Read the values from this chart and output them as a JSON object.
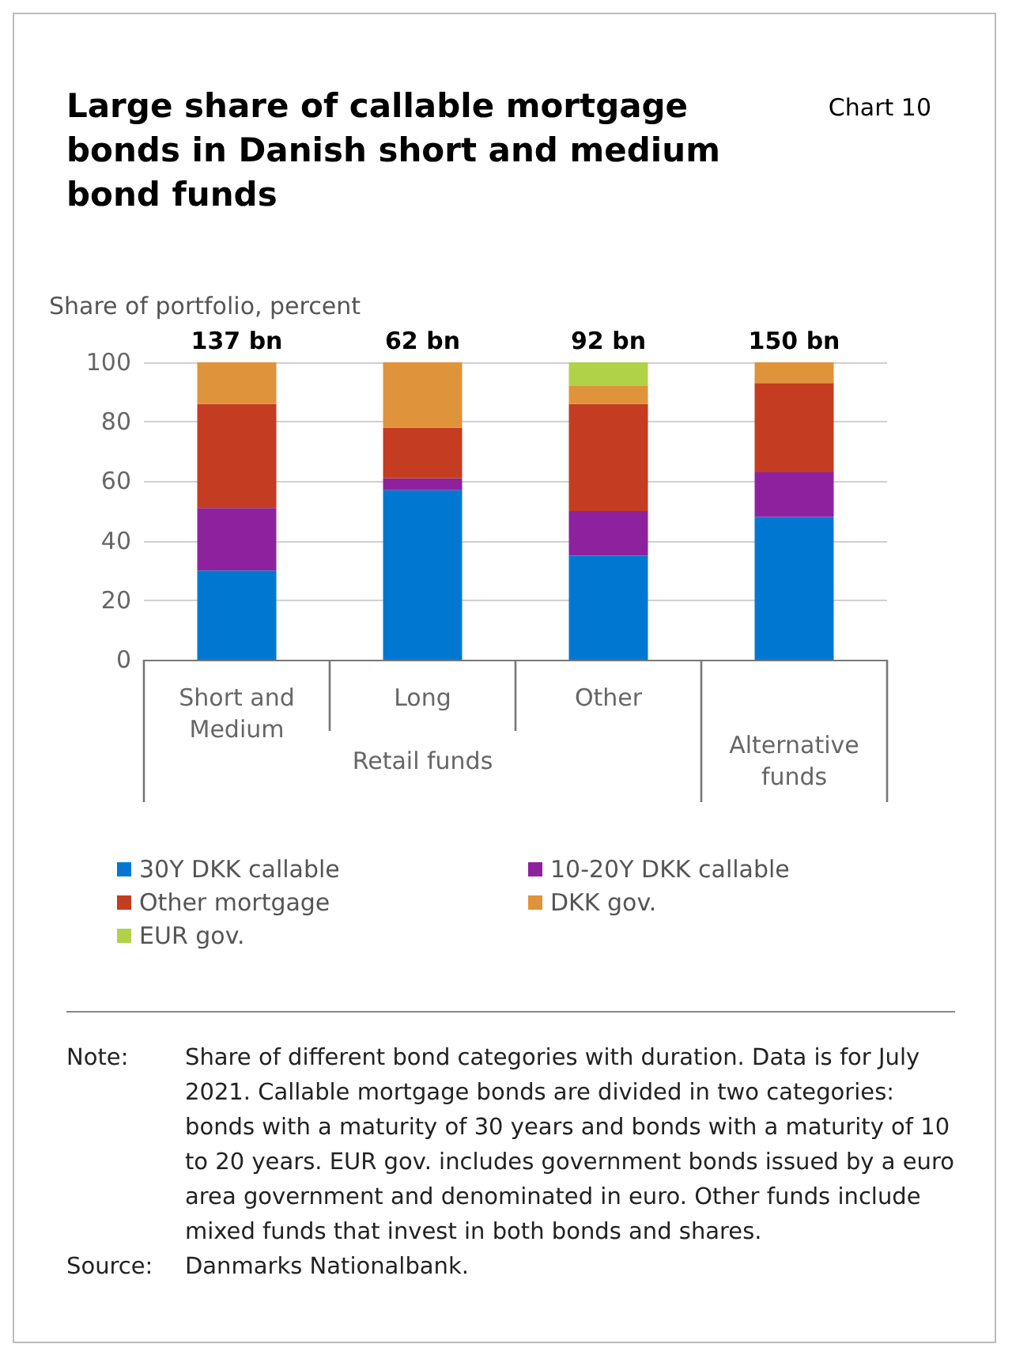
{
  "chart_data": {
    "type": "bar",
    "stacked": true,
    "title": "Large share of callable mortgage bonds in Danish short and medium bond funds",
    "ylabel": "Share of portfolio, percent",
    "categories": [
      "Short and\nMedium",
      "Long",
      "Other",
      null
    ],
    "series": [
      {
        "name": "30Y DKK callable",
        "color": "#0078d2",
        "values": [
          30,
          57,
          35,
          48
        ]
      },
      {
        "name": "10-20Y DKK callable",
        "color": "#8e229e",
        "values": [
          21,
          4,
          15,
          15
        ]
      },
      {
        "name": "Other mortgage",
        "color": "#c43c21",
        "values": [
          35,
          17,
          36,
          30
        ]
      },
      {
        "name": "DKK gov.",
        "color": "#df933a",
        "values": [
          14,
          22,
          6,
          7
        ]
      },
      {
        "name": "EUR gov.",
        "color": "#b0d249",
        "values": [
          0,
          0,
          8,
          0
        ]
      }
    ],
    "ylim": [
      0,
      100
    ],
    "yticks": [
      0,
      20,
      40,
      60,
      80,
      100
    ],
    "grid": "y",
    "legend": "bottom",
    "annotations": [
      "Chart 10",
      "Retail funds",
      "Alternative\nfunds",
      {
        "text": "137 bn",
        "x": "Short and\nMedium",
        "y": 100
      },
      {
        "text": "62 bn",
        "x": "Long",
        "y": 100
      },
      {
        "text": "92 bn",
        "x": "Other",
        "y": 100
      },
      {
        "text": "150 bn",
        "y": 100
      },
      "Note: Share of different bond categories with duration. Data is for July 2021. Callable mortgage bonds are divided in two categories: bonds with a maturity of 30 years and bonds with a maturity of 10 to 20 years. EUR gov. includes government bonds issued by a euro area government and denominated in euro. Other funds include mixed funds that invest in both bonds and shares.",
      "Source: Danmarks Nationalbank."
    ]
  }
}
